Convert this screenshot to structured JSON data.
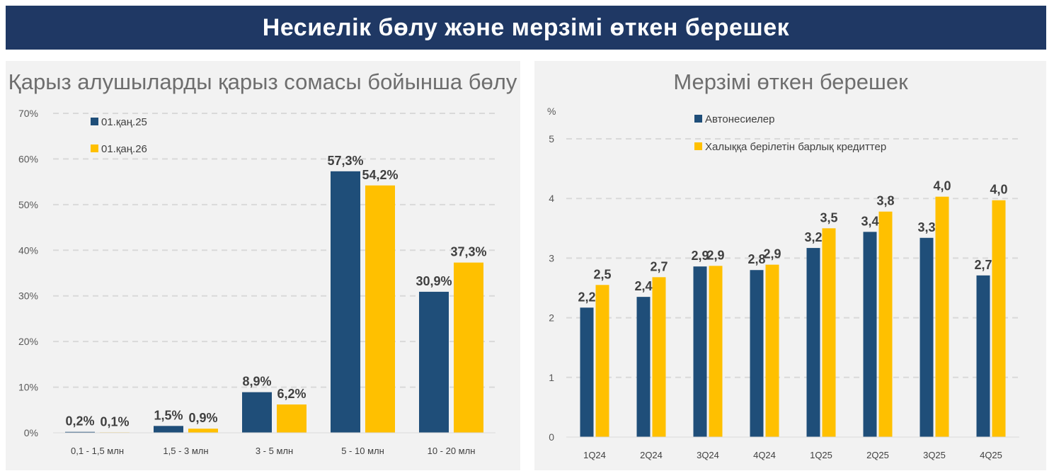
{
  "header": {
    "title": "Несиелік бөлу және мерзімі өткен берешек"
  },
  "chart_data": [
    {
      "type": "bar",
      "title": "Қарыз алушыларды қарыз сомасы бойынша бөлу",
      "categories": [
        "0,1 - 1,5 млн",
        "1,5 - 3 млн",
        "3 - 5 млн",
        "5 - 10 млн",
        "10 - 20 млн"
      ],
      "series": [
        {
          "name": "01.қаң.25",
          "color": "#1f4e79",
          "values": [
            0.2,
            1.5,
            8.9,
            57.3,
            30.9
          ],
          "labels": [
            "0,2%",
            "1,5%",
            "8,9%",
            "57,3%",
            "30,9%"
          ]
        },
        {
          "name": "01.қаң.26",
          "color": "#ffc000",
          "values": [
            0.1,
            0.9,
            6.2,
            54.2,
            37.3
          ],
          "labels": [
            "0,1%",
            "0,9%",
            "6,2%",
            "54,2%",
            "37,3%"
          ]
        }
      ],
      "yticks": [
        "0%",
        "10%",
        "20%",
        "30%",
        "40%",
        "50%",
        "60%",
        "70%"
      ],
      "ylim": [
        0,
        70
      ],
      "grid": true,
      "legend": "top-left"
    },
    {
      "type": "bar",
      "title": "Мерзімі өткен берешек",
      "ylabel": "%",
      "categories": [
        "1Q24",
        "2Q24",
        "3Q24",
        "4Q24",
        "1Q25",
        "2Q25",
        "3Q25",
        "4Q25"
      ],
      "series": [
        {
          "name": "Автонесиелер",
          "color": "#1f4e79",
          "values": [
            2.17,
            2.35,
            2.86,
            2.8,
            3.17,
            3.44,
            3.34,
            2.71
          ],
          "labels": [
            "2,2",
            "2,4",
            "2,9",
            "2,8",
            "3,2",
            "3,4",
            "3,3",
            "2,7"
          ]
        },
        {
          "name": "Халыққа берілетін барлық кредиттер",
          "color": "#ffc000",
          "values": [
            2.55,
            2.68,
            2.87,
            2.89,
            3.5,
            3.78,
            4.03,
            3.97
          ],
          "labels": [
            "2,5",
            "2,7",
            "2,9",
            "2,9",
            "3,5",
            "3,8",
            "4,0",
            "4,0"
          ]
        }
      ],
      "yticks": [
        "0",
        "1",
        "2",
        "3",
        "4",
        "5"
      ],
      "ylim": [
        0,
        5
      ],
      "grid": true,
      "legend": "top-center"
    }
  ]
}
